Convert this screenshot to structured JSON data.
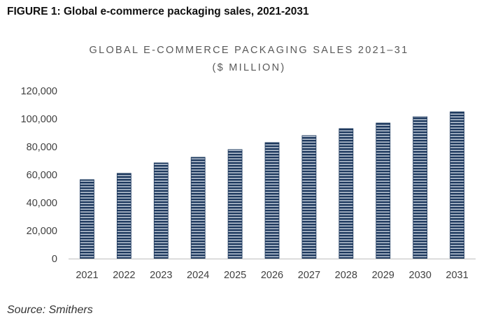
{
  "figure_caption": "FIGURE 1: Global e-commerce packaging sales, 2021-2031",
  "source_text": "Source: Smithers",
  "chart_data": {
    "type": "bar",
    "title_line1": "GLOBAL E-COMMERCE PACKAGING SALES 2021–31",
    "title_line2": "($ MILLION)",
    "categories": [
      "2021",
      "2022",
      "2023",
      "2024",
      "2025",
      "2026",
      "2027",
      "2028",
      "2029",
      "2030",
      "2031"
    ],
    "values": [
      56500,
      61000,
      68500,
      72500,
      78000,
      83000,
      88000,
      93000,
      97000,
      101500,
      105000
    ],
    "ylim": [
      0,
      120000
    ],
    "yticks": [
      0,
      20000,
      40000,
      60000,
      80000,
      100000,
      120000
    ],
    "ytick_labels": [
      "0",
      "20,000",
      "40,000",
      "60,000",
      "80,000",
      "100,000",
      "120,000"
    ],
    "grid": false,
    "bar_color": "#1f3a5f",
    "bar_stripe_color": "#c9d3e0",
    "axis_color": "#bfbfbf"
  }
}
